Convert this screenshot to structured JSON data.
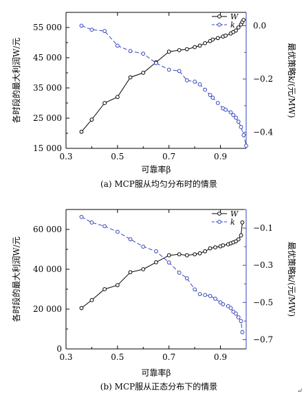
{
  "chart_data": [
    {
      "type": "line",
      "caption": "(a) MCP服从均匀分布时的情景",
      "xlabel": "可靠率β",
      "ylabel_left": "各时段的最大利润W/元",
      "ylabel_right": "最优策略k/(元/MW)",
      "xlim": [
        0.3,
        1.0
      ],
      "xticks": [
        0.3,
        0.5,
        0.7,
        0.9
      ],
      "ylim_left": [
        15000,
        60000
      ],
      "yticks_left": [
        15000,
        25000,
        35000,
        45000,
        55000
      ],
      "ytick_labels_left": [
        "15 000",
        "25 000",
        "35 000",
        "45 000",
        "55 000"
      ],
      "ylim_right": [
        -0.46,
        0.05
      ],
      "yticks_right": [
        0.0,
        -0.2,
        -0.4
      ],
      "ytick_labels_right": [
        "0.0",
        "−0.2",
        "−0.4"
      ],
      "legend_position": "top-right",
      "grid": false,
      "series": [
        {
          "name": "W",
          "axis": "left",
          "color": "#000000",
          "line_style": "solid",
          "marker": "circle",
          "x": [
            0.36,
            0.4,
            0.45,
            0.5,
            0.55,
            0.6,
            0.65,
            0.7,
            0.74,
            0.77,
            0.8,
            0.82,
            0.84,
            0.86,
            0.87,
            0.89,
            0.91,
            0.92,
            0.94,
            0.95,
            0.96,
            0.97,
            0.98,
            0.985,
            0.99
          ],
          "values": [
            20500,
            24500,
            30000,
            32000,
            38500,
            40000,
            43500,
            47000,
            47500,
            47800,
            48500,
            49000,
            49800,
            50500,
            51000,
            51500,
            52000,
            52300,
            53000,
            53500,
            54000,
            55000,
            56000,
            56800,
            57500
          ]
        },
        {
          "name": "k",
          "axis": "right",
          "color": "#3344bb",
          "line_style": "dashed",
          "marker": "circle",
          "x": [
            0.36,
            0.4,
            0.45,
            0.5,
            0.55,
            0.6,
            0.65,
            0.7,
            0.74,
            0.77,
            0.8,
            0.82,
            0.84,
            0.86,
            0.87,
            0.89,
            0.91,
            0.92,
            0.94,
            0.95,
            0.96,
            0.97,
            0.98,
            0.99,
            1.0
          ],
          "values": [
            0.0,
            -0.015,
            -0.02,
            -0.075,
            -0.095,
            -0.105,
            -0.14,
            -0.165,
            -0.17,
            -0.205,
            -0.21,
            -0.22,
            -0.24,
            -0.26,
            -0.27,
            -0.29,
            -0.31,
            -0.315,
            -0.325,
            -0.335,
            -0.345,
            -0.36,
            -0.38,
            -0.41,
            -0.45
          ]
        }
      ]
    },
    {
      "type": "line",
      "caption": "(b) MCP服从正态分布下的情景",
      "xlabel": "可靠率β",
      "ylabel_left": "各时段的最大利润W/元",
      "ylabel_right": "最优策略k/(元/MW)",
      "xlim": [
        0.3,
        1.0
      ],
      "xticks": [
        0.3,
        0.5,
        0.7,
        0.9
      ],
      "ylim_left": [
        0,
        70000
      ],
      "yticks_left": [
        0,
        20000,
        40000,
        60000
      ],
      "ytick_labels_left": [
        "0",
        "20 000",
        "40 000",
        "60 000"
      ],
      "ylim_right": [
        -0.75,
        0.0
      ],
      "yticks_right": [
        -0.1,
        -0.3,
        -0.5,
        -0.7
      ],
      "ytick_labels_right": [
        "−0.1",
        "−0.3",
        "−0.5",
        "−0.7"
      ],
      "legend_position": "top-right",
      "grid": false,
      "series": [
        {
          "name": "W",
          "axis": "left",
          "color": "#000000",
          "line_style": "solid",
          "marker": "circle",
          "x": [
            0.36,
            0.4,
            0.45,
            0.5,
            0.55,
            0.6,
            0.65,
            0.7,
            0.74,
            0.77,
            0.8,
            0.82,
            0.84,
            0.86,
            0.88,
            0.9,
            0.91,
            0.93,
            0.94,
            0.95,
            0.96,
            0.97,
            0.98,
            0.985
          ],
          "values": [
            20500,
            24500,
            30000,
            32000,
            38500,
            40000,
            43500,
            47000,
            47500,
            47000,
            47500,
            48000,
            49000,
            50500,
            51000,
            51500,
            52000,
            52500,
            53000,
            53500,
            54000,
            55000,
            57000,
            63500
          ]
        },
        {
          "name": "k",
          "axis": "right",
          "color": "#3344bb",
          "line_style": "dashed",
          "marker": "circle",
          "x": [
            0.36,
            0.4,
            0.45,
            0.5,
            0.55,
            0.6,
            0.65,
            0.7,
            0.74,
            0.77,
            0.8,
            0.82,
            0.84,
            0.86,
            0.88,
            0.9,
            0.91,
            0.93,
            0.94,
            0.95,
            0.96,
            0.97,
            0.98,
            0.985
          ],
          "values": [
            -0.04,
            -0.07,
            -0.09,
            -0.12,
            -0.16,
            -0.2,
            -0.225,
            -0.285,
            -0.34,
            -0.37,
            -0.43,
            -0.455,
            -0.46,
            -0.465,
            -0.48,
            -0.5,
            -0.51,
            -0.52,
            -0.53,
            -0.55,
            -0.56,
            -0.58,
            -0.6,
            -0.66
          ]
        }
      ]
    }
  ],
  "corner_mark": "↵"
}
